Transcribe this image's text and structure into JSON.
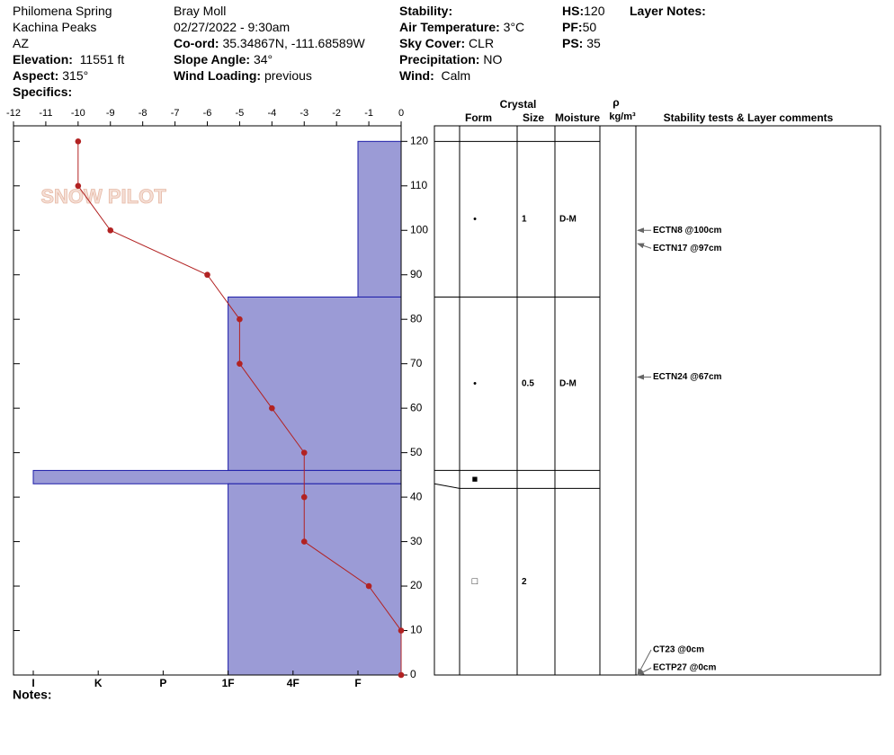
{
  "header": {
    "site": "Philomena Spring",
    "area": "Kachina Peaks",
    "state": "AZ",
    "elevation": {
      "label": "Elevation:",
      "value": "11551 ft"
    },
    "aspect": {
      "label": "Aspect:",
      "value": "315°"
    },
    "specifics": {
      "label": "Specifics:"
    },
    "observer": "Bray Moll",
    "datetime": "02/27/2022 - 9:30am",
    "coord": {
      "label": "Co-ord:",
      "value": "35.34867N, -111.68589W"
    },
    "slope": {
      "label": "Slope Angle:",
      "value": "34°"
    },
    "wind_loading": {
      "label": "Wind Loading:",
      "value": "previous"
    },
    "stability": {
      "label": "Stability:"
    },
    "air_temp": {
      "label": "Air Temperature:",
      "value": "3°C"
    },
    "sky": {
      "label": "Sky Cover:",
      "value": "CLR"
    },
    "precip": {
      "label": "Precipitation:",
      "value": "NO"
    },
    "wind": {
      "label": "Wind:",
      "value": "Calm"
    },
    "hs": {
      "label": "HS:",
      "value": 120
    },
    "pf": {
      "label": "PF:",
      "value": 50
    },
    "ps": {
      "label": "PS:",
      "value": 35
    },
    "layer_notes": {
      "label": "Layer Notes:"
    }
  },
  "chart_data": {
    "type": "snowprofile",
    "watermark": "SNOW PILOT",
    "temperature": {
      "heights": [
        120,
        110,
        100,
        90,
        80,
        70,
        60,
        50,
        40,
        30,
        20,
        10,
        0
      ],
      "values": [
        -10,
        -10,
        -9,
        -6,
        -5,
        -5,
        -4,
        -3,
        -3,
        -3,
        -1,
        0,
        0
      ],
      "color": "#b22222"
    },
    "xlim": [
      -12,
      0
    ],
    "xticks": [
      -12,
      -11,
      -10,
      -9,
      -8,
      -7,
      -6,
      -5,
      -4,
      -3,
      -2,
      -1,
      0
    ],
    "ylim": [
      0,
      123.5
    ],
    "yticks": [
      0,
      10,
      20,
      30,
      40,
      50,
      60,
      70,
      80,
      90,
      100,
      110,
      120
    ],
    "hardness_scale": [
      "I",
      "K",
      "P",
      "1F",
      "4F",
      "F"
    ],
    "bar_color": "#9b9bd6",
    "layers": [
      {
        "top": 120,
        "bottom": 85,
        "hardness": "F",
        "form": "•",
        "size": 1,
        "moisture": "D-M"
      },
      {
        "top": 85,
        "bottom": 46,
        "hardness": "1F",
        "form": "•",
        "size": 0.5,
        "moisture": "D-M"
      },
      {
        "top": 46,
        "bottom": 43,
        "hardness": "I",
        "form": "■"
      },
      {
        "top": 43,
        "bottom": 0,
        "hardness": "1F",
        "form": "□",
        "size": 2
      }
    ],
    "table_headers": {
      "crystal": "Crystal",
      "form": "Form",
      "size": "Size",
      "moisture": "Moisture",
      "rho": "ρ",
      "density_unit": "kg/m³",
      "comments": "Stability tests & Layer comments"
    },
    "tests": [
      {
        "label": "ECTN8 @100cm",
        "height": 100
      },
      {
        "label": "ECTN17 @97cm",
        "height": 97
      },
      {
        "label": "ECTN24 @67cm",
        "height": 67
      },
      {
        "label": "CT23 @0cm",
        "height": 0
      },
      {
        "label": "ECTP27 @0cm",
        "height": 0
      }
    ]
  },
  "notes": {
    "label": "Notes:"
  }
}
